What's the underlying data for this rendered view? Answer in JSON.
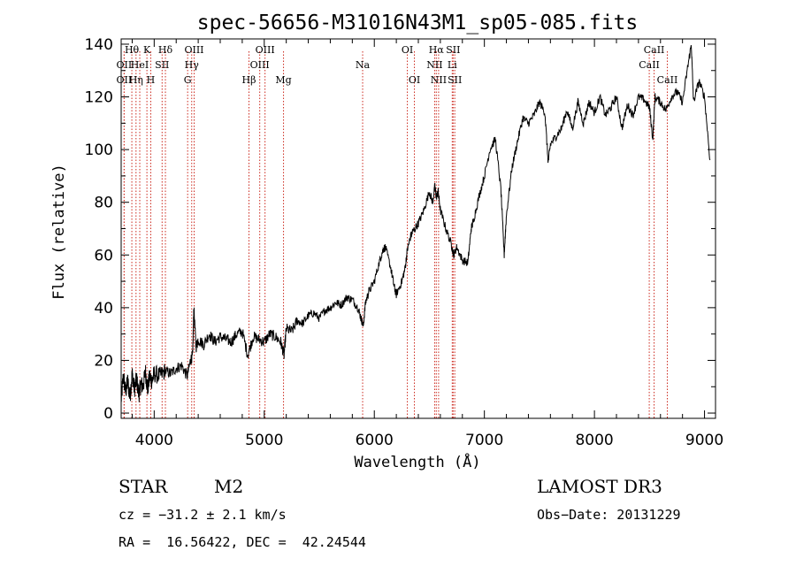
{
  "chart_data": {
    "type": "line",
    "title": "spec-56656-M31016N43M1_sp05-085.fits",
    "xlabel": "Wavelength (Å)",
    "ylabel": "Flux (relative)",
    "xlim": [
      3700,
      9100
    ],
    "ylim": [
      -2,
      142
    ],
    "xticks": [
      4000,
      5000,
      6000,
      7000,
      8000,
      9000
    ],
    "yticks": [
      0,
      20,
      40,
      60,
      80,
      100,
      120,
      140
    ],
    "spectrum": {
      "x": [
        3700,
        3720,
        3740,
        3760,
        3780,
        3800,
        3820,
        3840,
        3860,
        3880,
        3900,
        3920,
        3940,
        3960,
        3980,
        4000,
        4050,
        4100,
        4150,
        4200,
        4250,
        4300,
        4330,
        4350,
        4360,
        4380,
        4400,
        4450,
        4500,
        4550,
        4600,
        4650,
        4700,
        4750,
        4800,
        4850,
        4900,
        4950,
        5000,
        5050,
        5100,
        5150,
        5180,
        5200,
        5250,
        5300,
        5350,
        5400,
        5450,
        5500,
        5550,
        5600,
        5650,
        5700,
        5750,
        5800,
        5850,
        5880,
        5900,
        5920,
        5950,
        6000,
        6050,
        6080,
        6100,
        6150,
        6180,
        6200,
        6250,
        6280,
        6300,
        6330,
        6350,
        6400,
        6450,
        6500,
        6530,
        6550,
        6563,
        6580,
        6600,
        6650,
        6700,
        6720,
        6750,
        6800,
        6850,
        6880,
        6900,
        6950,
        7000,
        7050,
        7100,
        7150,
        7180,
        7200,
        7250,
        7300,
        7350,
        7400,
        7450,
        7500,
        7550,
        7580,
        7600,
        7650,
        7700,
        7750,
        7800,
        7850,
        7900,
        7950,
        8000,
        8050,
        8100,
        8150,
        8200,
        8250,
        8300,
        8350,
        8400,
        8450,
        8500,
        8530,
        8550,
        8600,
        8650,
        8700,
        8750,
        8800,
        8850,
        8880,
        8900,
        8950,
        9000,
        9050
      ],
      "y": [
        5,
        14,
        8,
        12,
        6,
        15,
        9,
        13,
        7,
        11,
        10,
        16,
        9,
        14,
        12,
        15,
        14,
        16,
        15,
        17,
        18,
        14,
        20,
        22,
        40,
        25,
        28,
        26,
        30,
        27,
        29,
        28,
        27,
        30,
        31,
        22,
        29,
        28,
        27,
        30,
        29,
        27,
        22,
        32,
        31,
        35,
        34,
        37,
        38,
        36,
        39,
        40,
        42,
        41,
        44,
        43,
        40,
        36,
        33,
        42,
        46,
        50,
        58,
        62,
        63,
        55,
        48,
        45,
        50,
        55,
        62,
        67,
        69,
        72,
        77,
        84,
        80,
        86,
        82,
        84,
        77,
        70,
        64,
        60,
        63,
        58,
        57,
        70,
        73,
        82,
        90,
        100,
        104,
        85,
        60,
        75,
        93,
        103,
        112,
        110,
        113,
        118,
        114,
        95,
        102,
        105,
        108,
        115,
        108,
        118,
        110,
        118,
        114,
        120,
        113,
        116,
        120,
        108,
        117,
        113,
        120,
        119,
        116,
        104,
        120,
        118,
        115,
        120,
        122,
        118,
        132,
        140,
        118,
        126,
        120,
        96
      ]
    },
    "emission_lines": [
      {
        "wavelength": 3727,
        "label": "OII",
        "row": 2
      },
      {
        "wavelength": 3727,
        "label": "OII",
        "row": 3
      },
      {
        "wavelength": 3797,
        "label": "Hθ",
        "row": 1
      },
      {
        "wavelength": 3835,
        "label": "Hη",
        "row": 3
      },
      {
        "wavelength": 3869,
        "label": "HeI",
        "row": 2
      },
      {
        "wavelength": 3934,
        "label": "K",
        "row": 1
      },
      {
        "wavelength": 3969,
        "label": "H",
        "row": 3
      },
      {
        "wavelength": 4072,
        "label": "SII",
        "row": 2
      },
      {
        "wavelength": 4102,
        "label": "Hδ",
        "row": 1
      },
      {
        "wavelength": 4304,
        "label": "G",
        "row": 3
      },
      {
        "wavelength": 4341,
        "label": "Hγ",
        "row": 2
      },
      {
        "wavelength": 4363,
        "label": "OIII",
        "row": 1
      },
      {
        "wavelength": 4861,
        "label": "Hβ",
        "row": 3
      },
      {
        "wavelength": 4959,
        "label": "OIII",
        "row": 2
      },
      {
        "wavelength": 5007,
        "label": "OIII",
        "row": 1
      },
      {
        "wavelength": 5175,
        "label": "Mg",
        "row": 3
      },
      {
        "wavelength": 5894,
        "label": "Na",
        "row": 2
      },
      {
        "wavelength": 6300,
        "label": "OI",
        "row": 1
      },
      {
        "wavelength": 6364,
        "label": "OI",
        "row": 3
      },
      {
        "wavelength": 6548,
        "label": "NII",
        "row": 2
      },
      {
        "wavelength": 6563,
        "label": "Hα",
        "row": 1
      },
      {
        "wavelength": 6584,
        "label": "NII",
        "row": 3
      },
      {
        "wavelength": 6708,
        "label": "Li",
        "row": 2
      },
      {
        "wavelength": 6716,
        "label": "SII",
        "row": 1
      },
      {
        "wavelength": 6731,
        "label": "SII",
        "row": 3
      },
      {
        "wavelength": 8498,
        "label": "CaII",
        "row": 2
      },
      {
        "wavelength": 8542,
        "label": "CaII",
        "row": 1
      },
      {
        "wavelength": 8662,
        "label": "CaII",
        "row": 3
      }
    ],
    "line_color": "#000000",
    "marker_color": "#cc2a1f"
  },
  "info": {
    "class_label": "STAR",
    "subclass": "M2",
    "survey": "LAMOST DR3",
    "cz": "cz = −31.2 ± 2.1 km/s",
    "obs_date": "Obs−Date: 20131229",
    "coords": "RA =  16.56422, DEC =  42.24544"
  }
}
